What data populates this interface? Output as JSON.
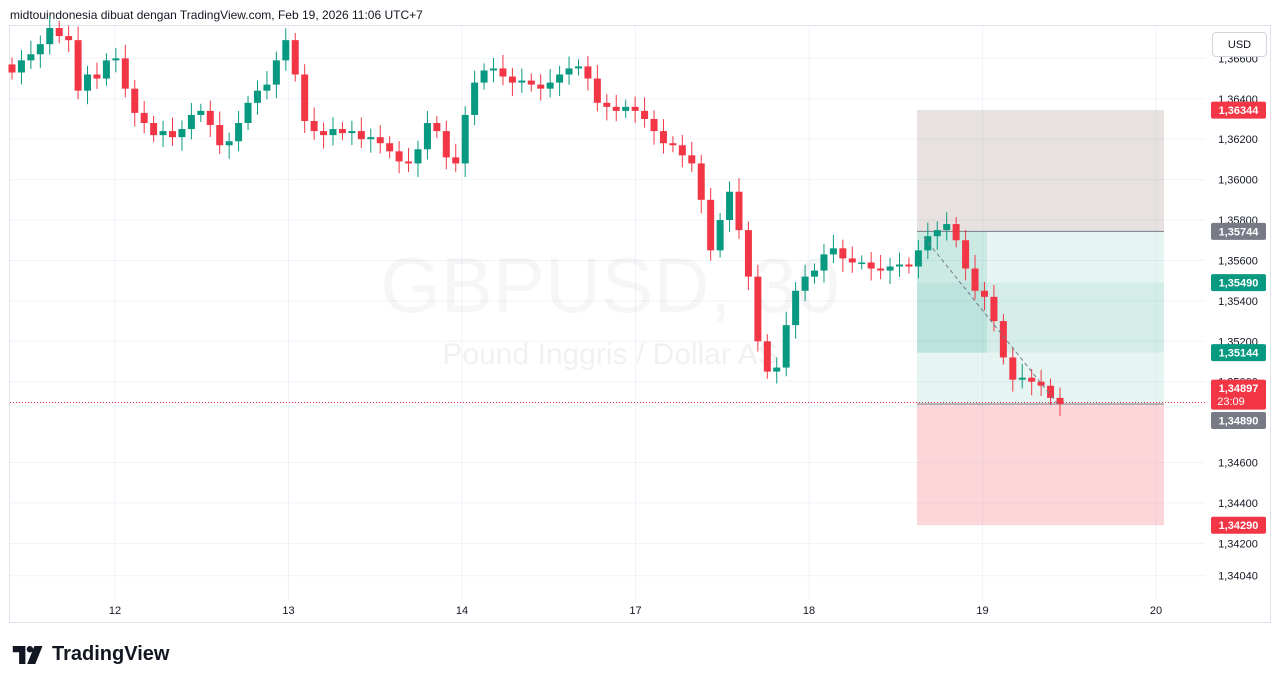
{
  "header": {
    "attribution": "midtouindonesia dibuat dengan TradingView.com, Feb 19, 2026 11:06 UTC+7"
  },
  "currency_button": "USD",
  "watermark": {
    "symbol": "GBPUSD, 30",
    "description": "Pound Inggris / Dollar AS"
  },
  "footer": {
    "brand": "TradingView",
    "logo_icon": "tradingview-logo-icon"
  },
  "colors": {
    "up": "#089981",
    "down": "#f23645",
    "grid": "#f0f3fa",
    "stop_zone": "#f23645",
    "target_zone": "#089981",
    "label_red": "#f23645",
    "label_green": "#089981",
    "label_gray": "#787b86"
  },
  "chart_data": {
    "type": "candlestick",
    "symbol": "GBPUSD",
    "timeframe": "30",
    "currency": "USD",
    "x_tick_labels": [
      "12",
      "13",
      "14",
      "17",
      "18",
      "19",
      "20"
    ],
    "y_tick_labels": [
      "1,36600",
      "1,36400",
      "1,36200",
      "1,36000",
      "1,35800",
      "1,35600",
      "1,35400",
      "1,35200",
      "1,35000",
      "1,34600",
      "1,34400",
      "1,34200",
      "1,34040"
    ],
    "ylim": [
      1.3392,
      1.3676
    ],
    "closes": [
      1.3653,
      1.3659,
      1.3662,
      1.3667,
      1.3675,
      1.3671,
      1.3669,
      1.3644,
      1.3652,
      1.365,
      1.3659,
      1.366,
      1.3645,
      1.3633,
      1.3628,
      1.3622,
      1.3624,
      1.3621,
      1.3625,
      1.3632,
      1.3634,
      1.3627,
      1.3617,
      1.3619,
      1.3628,
      1.3638,
      1.3644,
      1.3647,
      1.3659,
      1.3669,
      1.3652,
      1.3629,
      1.3624,
      1.3622,
      1.3625,
      1.3623,
      1.3624,
      1.362,
      1.3621,
      1.3618,
      1.3614,
      1.3609,
      1.3608,
      1.3615,
      1.3628,
      1.3624,
      1.3611,
      1.3608,
      1.3632,
      1.3648,
      1.3654,
      1.3655,
      1.3651,
      1.3648,
      1.3649,
      1.3647,
      1.3645,
      1.3648,
      1.3652,
      1.3655,
      1.3656,
      1.365,
      1.3638,
      1.3636,
      1.3634,
      1.3636,
      1.3634,
      1.363,
      1.3624,
      1.3618,
      1.3617,
      1.3612,
      1.3608,
      1.359,
      1.3565,
      1.358,
      1.3594,
      1.3575,
      1.3552,
      1.352,
      1.3505,
      1.3507,
      1.3528,
      1.3545,
      1.3552,
      1.3555,
      1.3563,
      1.3566,
      1.3561,
      1.3559,
      1.3559,
      1.3556,
      1.3555,
      1.3557,
      1.3558,
      1.3557,
      1.3565,
      1.3572,
      1.3575,
      1.3578,
      1.357,
      1.3556,
      1.3545,
      1.3542,
      1.353,
      1.3512,
      1.3501,
      1.3502,
      1.35,
      1.3498,
      1.3492,
      1.3489
    ],
    "position": {
      "type": "long",
      "stop": 1.3429,
      "entry": 1.3489,
      "target": 1.36344,
      "markers": [
        1.35744,
        1.3549,
        1.35144
      ]
    },
    "last_price": 1.34897,
    "countdown": "23:09",
    "price_labels": {
      "target": "1,36344",
      "level_a": "1,35744",
      "level_b": "1,35490",
      "level_c": "1,35144",
      "last": "1,34897",
      "entry": "1,34890",
      "stop": "1,34290"
    }
  }
}
